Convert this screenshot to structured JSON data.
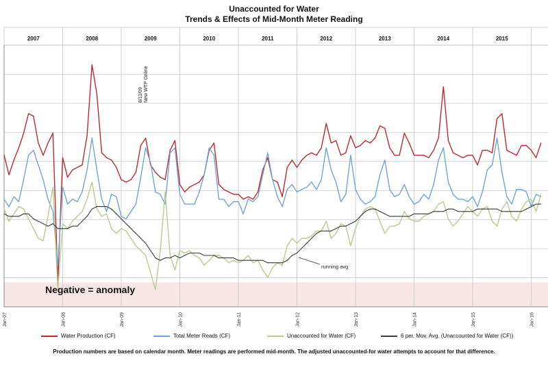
{
  "chart_data": {
    "type": "line",
    "title": "Unaccounted for Water",
    "subtitle": "Trends & Effects of Mid-Month Meter Reading",
    "year_labels": [
      "2007",
      "2008",
      "2009",
      "2010",
      "2011",
      "2012",
      "2013",
      "2014",
      "2015"
    ],
    "x_tick_labels": [
      "Jan-07",
      "Jan-08",
      "Jan-09",
      "Jan-10",
      "Jan-11",
      "Jan-12",
      "Jan-13",
      "Jan-14",
      "Jan-15",
      "Jan-16"
    ],
    "grid": true,
    "shaded_region_label": "Negative = anomaly",
    "annotations": [
      {
        "text": "8/11/09",
        "text2": "New WTP Online"
      },
      {
        "text": "running avg"
      }
    ],
    "series": [
      {
        "name": "Water Production (CF)",
        "color": "#c0282d",
        "values": [
          8.0,
          7.2,
          7.8,
          8.3,
          8.9,
          9.7,
          9.6,
          8.5,
          8.0,
          8.5,
          8.9,
          2.8,
          7.9,
          7.1,
          7.4,
          7.5,
          7.6,
          8.8,
          11.7,
          10.5,
          8.1,
          7.9,
          7.8,
          7.5,
          7.0,
          6.9,
          7.0,
          7.3,
          8.4,
          8.7,
          7.6,
          7.3,
          7.1,
          7.0,
          8.2,
          8.6,
          6.8,
          6.5,
          6.7,
          6.8,
          6.9,
          7.2,
          8.2,
          8.5,
          6.8,
          6.6,
          6.5,
          6.4,
          6.4,
          6.2,
          6.3,
          6.2,
          6.5,
          7.4,
          7.9,
          7.0,
          6.9,
          6.3,
          7.5,
          7.8,
          7.5,
          7.8,
          8.0,
          8.1,
          8.0,
          8.3,
          9.3,
          8.5,
          8.6,
          8.0,
          8.1,
          8.8,
          8.3,
          8.4,
          8.6,
          8.5,
          8.7,
          9.2,
          9.1,
          8.3,
          8.0,
          8.0,
          8.9,
          8.5,
          8.0,
          8.0,
          8.0,
          7.9,
          8.2,
          8.7,
          10.8,
          8.6,
          8.1,
          8.0,
          7.9,
          8.0,
          8.0,
          7.6,
          8.2,
          8.2,
          8.1,
          9.5,
          9.7,
          8.2,
          8.1,
          8.0,
          8.4,
          8.4,
          8.2,
          7.9,
          8.5
        ]
      },
      {
        "name": "Total Meter Reads (CF)",
        "color": "#6fa3d8",
        "values": [
          6.2,
          5.9,
          6.3,
          6.1,
          7.0,
          8.0,
          8.2,
          7.6,
          7.0,
          6.2,
          5.7,
          3.5,
          6.7,
          6.0,
          6.2,
          6.1,
          6.5,
          7.4,
          8.7,
          7.4,
          6.2,
          5.7,
          6.4,
          6.3,
          5.5,
          5.4,
          5.7,
          6.0,
          7.1,
          8.3,
          7.7,
          6.5,
          6.4,
          6.0,
          8.1,
          8.3,
          6.4,
          6.0,
          6.0,
          6.0,
          6.5,
          7.2,
          8.3,
          8.0,
          6.2,
          6.2,
          5.9,
          6.1,
          6.1,
          5.6,
          6.2,
          6.1,
          6.3,
          7.2,
          8.1,
          7.0,
          6.3,
          5.9,
          6.6,
          6.8,
          6.5,
          6.6,
          6.7,
          6.9,
          6.6,
          7.0,
          8.3,
          7.4,
          6.9,
          6.1,
          6.4,
          8.0,
          6.6,
          6.2,
          6.0,
          6.1,
          6.3,
          7.2,
          7.8,
          6.6,
          6.3,
          6.4,
          6.8,
          6.3,
          6.0,
          6.1,
          6.4,
          6.2,
          6.8,
          7.8,
          8.3,
          6.9,
          6.4,
          6.2,
          6.2,
          6.1,
          6.3,
          5.9,
          6.5,
          7.4,
          7.6,
          8.7,
          7.3,
          6.3,
          6.0,
          6.6,
          6.6,
          6.5,
          5.9,
          6.4,
          6.3
        ]
      },
      {
        "name": "Unaccounted for Water (CF)",
        "color": "#b5cc8e",
        "values": [
          5.8,
          5.3,
          5.6,
          5.9,
          5.8,
          5.4,
          5.0,
          4.6,
          4.5,
          5.5,
          6.7,
          2.5,
          5.2,
          5.0,
          5.3,
          5.5,
          5.7,
          6.2,
          6.9,
          5.8,
          5.5,
          5.6,
          5.0,
          4.8,
          5.0,
          4.9,
          4.6,
          4.3,
          4.1,
          3.9,
          3.2,
          2.5,
          4.1,
          6.5,
          3.9,
          3.3,
          4.1,
          4.0,
          4.1,
          3.9,
          3.8,
          3.5,
          3.7,
          3.9,
          3.9,
          3.8,
          3.6,
          3.7,
          3.6,
          3.7,
          3.9,
          3.6,
          3.7,
          3.3,
          3.0,
          3.4,
          3.6,
          3.5,
          4.3,
          4.6,
          4.4,
          4.6,
          4.6,
          4.7,
          4.9,
          4.9,
          5.3,
          4.6,
          4.8,
          5.2,
          5.1,
          4.3,
          5.0,
          5.5,
          5.8,
          5.9,
          5.8,
          5.3,
          4.8,
          5.1,
          5.1,
          5.2,
          5.7,
          5.4,
          5.3,
          5.3,
          5.5,
          5.6,
          5.7,
          6.0,
          6.1,
          5.4,
          5.1,
          5.3,
          5.6,
          5.9,
          5.7,
          5.5,
          5.8,
          5.9,
          5.3,
          5.1,
          5.8,
          6.1,
          5.5,
          5.3,
          5.8,
          6.1,
          6.2,
          5.7,
          6.4
        ]
      },
      {
        "name": "6 per. Mov. Avg. (Unaccounted for Water (CF))",
        "color": "#3a3a3a",
        "values": [
          5.6,
          5.5,
          5.5,
          5.5,
          5.6,
          5.6,
          5.4,
          5.3,
          5.2,
          5.1,
          5.2,
          5.0,
          5.0,
          5.0,
          5.1,
          5.1,
          5.3,
          5.5,
          5.8,
          5.9,
          5.9,
          5.9,
          5.8,
          5.6,
          5.4,
          5.2,
          5.0,
          4.8,
          4.6,
          4.4,
          4.1,
          3.8,
          3.7,
          3.8,
          3.8,
          3.9,
          3.8,
          3.9,
          4.0,
          4.0,
          4.0,
          3.9,
          3.9,
          3.9,
          3.8,
          3.8,
          3.8,
          3.8,
          3.7,
          3.7,
          3.7,
          3.7,
          3.7,
          3.7,
          3.6,
          3.6,
          3.6,
          3.6,
          3.7,
          3.9,
          4.0,
          4.2,
          4.4,
          4.6,
          4.8,
          4.9,
          4.9,
          4.9,
          5.0,
          5.1,
          5.1,
          5.2,
          5.3,
          5.5,
          5.7,
          5.8,
          5.8,
          5.7,
          5.6,
          5.5,
          5.5,
          5.5,
          5.5,
          5.5,
          5.6,
          5.6,
          5.6,
          5.6,
          5.7,
          5.7,
          5.7,
          5.8,
          5.8,
          5.7,
          5.7,
          5.7,
          5.7,
          5.8,
          5.8,
          5.8,
          5.8,
          5.8,
          5.7,
          5.7,
          5.7,
          5.7,
          5.7,
          5.8,
          5.9,
          6.0,
          6.0
        ]
      }
    ],
    "ylim": [
      1.8,
      12.5
    ],
    "negative_threshold": 2.8
  },
  "footnote": "Production numbers are based on calendar month.  Meter readings are performed mid-month.  The adjusted unaccounted-for water attempts to account for that difference."
}
